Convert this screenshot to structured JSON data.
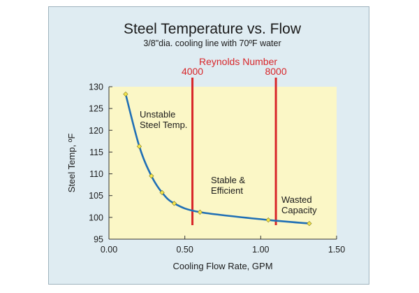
{
  "chart_data": {
    "type": "line",
    "title": "Steel Temperature vs. Flow",
    "subtitle": "3/8\"dia. cooling line with 70ºF water",
    "xlabel": "Cooling Flow Rate, GPM",
    "ylabel": "Steel Temp, ºF",
    "xlim": [
      0.0,
      1.5
    ],
    "ylim": [
      95,
      130
    ],
    "x_ticks": [
      "0.00",
      "0.50",
      "1.00",
      "1.50"
    ],
    "y_ticks": [
      "95",
      "100",
      "105",
      "110",
      "115",
      "120",
      "125",
      "130"
    ],
    "grid": false,
    "series": [
      {
        "x": [
          0.11,
          0.2,
          0.28,
          0.35,
          0.43,
          0.6,
          1.05,
          1.32
        ],
        "y": [
          128.3,
          116.3,
          109.5,
          105.7,
          103.2,
          101.2,
          99.4,
          98.6
        ]
      }
    ],
    "reference_lines": {
      "title": "Reynolds Number",
      "lines": [
        {
          "label": "4000",
          "x": 0.55
        },
        {
          "label": "8000",
          "x": 1.1
        }
      ]
    },
    "annotations": [
      {
        "lines": [
          "Unstable",
          "Steel Temp."
        ]
      },
      {
        "lines": [
          "Stable &",
          "Efficient"
        ]
      },
      {
        "lines": [
          "Wasted",
          "Capacity"
        ]
      }
    ],
    "colors": {
      "line": "#1f6fb5",
      "marker": "#f4e44a",
      "reference": "#d8262a",
      "plot_bg": "#fbf7c6",
      "frame_bg": "#dfecf2"
    }
  }
}
